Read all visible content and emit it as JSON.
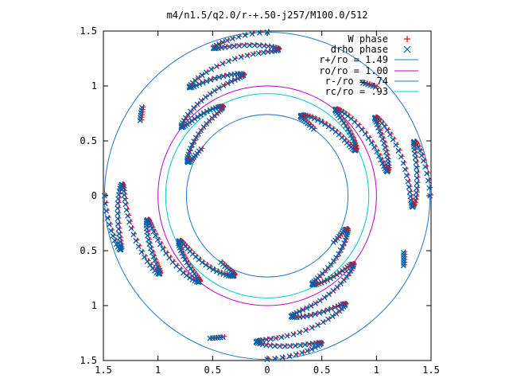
{
  "chart_data": {
    "type": "scatter",
    "title": "m4/n1.5/q2.0/r-+.50-j257/M100.0/512",
    "xlim": [
      -1.5,
      1.5
    ],
    "ylim": [
      -1.5,
      1.5
    ],
    "x_tick_values": [
      -1.5,
      -1,
      -0.5,
      0,
      0.5,
      1,
      1.5
    ],
    "x_tick_labels": [
      "1.5",
      "1",
      "0.5",
      "0",
      "0.5",
      "1",
      "1.5"
    ],
    "y_tick_values": [
      1.5,
      1,
      0.5,
      0,
      -0.5,
      -1,
      -1.5
    ],
    "y_tick_labels": [
      "1.5",
      "1",
      "0.5",
      "0",
      "0.5",
      "1",
      "1.5"
    ],
    "legend_position": "top-right",
    "grid": false,
    "series": [
      {
        "name": "W phase",
        "marker": "plus",
        "color": "#ff0000"
      },
      {
        "name": "drho phase",
        "marker": "cross",
        "color": "#0060ad"
      }
    ],
    "circles": [
      {
        "name": "r+/ro = 1.49",
        "radius": 1.49,
        "color": "#1f78c8"
      },
      {
        "name": "ro/ro = 1.00",
        "radius": 1.0,
        "color": "#c000c0"
      },
      {
        "name": "r-/ro = .74",
        "radius": 0.74,
        "color": "#1f78c8"
      },
      {
        "name": "rc/ro = .93",
        "radius": 0.93,
        "color": "#00c8c8"
      }
    ],
    "spiral": {
      "arms": 4,
      "base_angles_deg": [
        90,
        0,
        180,
        -90
      ],
      "r_inner": 0.74,
      "r_outer": 1.49,
      "twist_deg": 55,
      "wiggle_amp_deg": 16,
      "wiggle_cycles": 3.5,
      "blob_angles_deg": [
        45,
        145,
        248,
        333
      ]
    }
  }
}
